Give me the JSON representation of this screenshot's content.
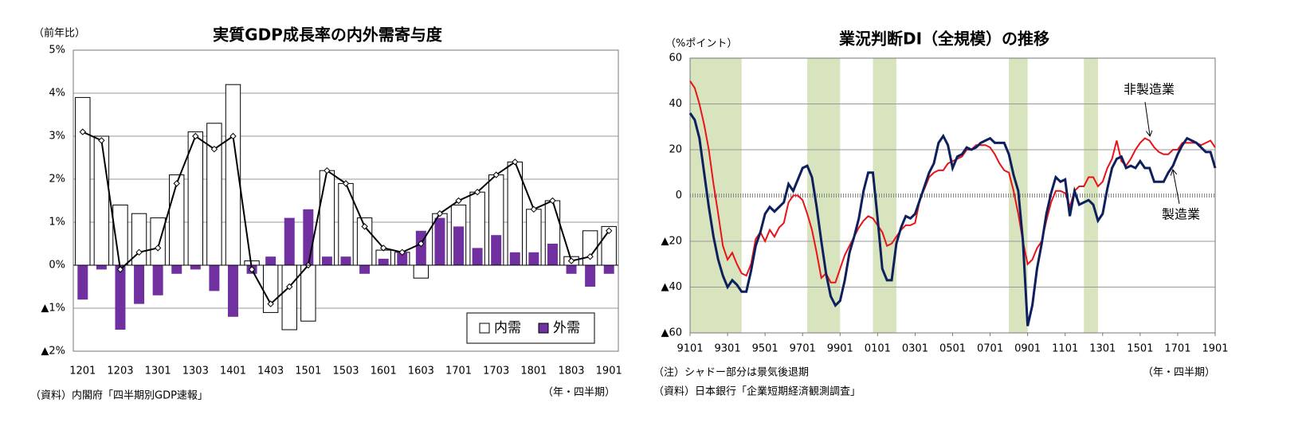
{
  "chart_data": [
    {
      "type": "bar",
      "title": "実質GDP成長率の内外需寄与度",
      "y_label": "（前年比）",
      "x_label": "（年・四半期）",
      "source": "（資料）内閣府「四半期別GDP速報」",
      "categories": [
        "1201",
        null,
        "1203",
        null,
        "1301",
        null,
        "1303",
        null,
        "1401",
        null,
        "1403",
        null,
        "1501",
        null,
        "1503",
        null,
        "1601",
        null,
        "1603",
        null,
        "1701",
        null,
        "1703",
        null,
        "1801",
        null,
        "1803",
        null,
        "1901"
      ],
      "series": [
        {
          "name": "内需",
          "color": "#ffffff",
          "values": [
            3.9,
            3.0,
            1.4,
            1.2,
            1.1,
            2.1,
            3.1,
            3.3,
            4.2,
            0.1,
            -1.1,
            -1.5,
            -1.3,
            2.2,
            1.9,
            1.1,
            0.35,
            0.3,
            -0.3,
            1.2,
            1.4,
            1.7,
            2.1,
            2.4,
            1.3,
            1.5,
            0.2,
            0.8,
            0.9
          ]
        },
        {
          "name": "外需",
          "color": "#7030a0",
          "values": [
            -0.8,
            -0.1,
            -1.5,
            -0.9,
            -0.7,
            -0.2,
            -0.1,
            -0.6,
            -1.2,
            -0.2,
            0.2,
            1.1,
            1.3,
            0.2,
            0.2,
            -0.2,
            0.15,
            0.3,
            0.8,
            1.1,
            0.9,
            0.4,
            0.7,
            0.3,
            0.3,
            0.5,
            -0.2,
            -0.5,
            -0.2
          ]
        },
        {
          "type": "line",
          "color": "#000000",
          "values": [
            3.1,
            2.9,
            -0.1,
            0.3,
            0.4,
            1.9,
            3.0,
            2.7,
            3.0,
            -0.1,
            -0.9,
            -0.5,
            0.0,
            2.2,
            1.9,
            0.9,
            0.4,
            0.3,
            0.5,
            1.2,
            1.5,
            1.7,
            2.1,
            2.4,
            1.3,
            1.5,
            0.1,
            0.2,
            0.8
          ]
        }
      ],
      "ylim": [
        -2,
        5
      ],
      "yticks": [
        {
          "value": -2,
          "label": "▲2%"
        },
        {
          "value": -1,
          "label": "▲1%"
        },
        {
          "value": 0,
          "label": "0%"
        },
        {
          "value": 1,
          "label": "1%"
        },
        {
          "value": 2,
          "label": "2%"
        },
        {
          "value": 3,
          "label": "3%"
        },
        {
          "value": 4,
          "label": "4%"
        },
        {
          "value": 5,
          "label": "5%"
        }
      ],
      "grid": true,
      "legend": "lower right"
    },
    {
      "type": "line",
      "title": "業況判断DI（全規模）の推移",
      "y_label": "（%ポイント）",
      "x_label": "（年・四半期）",
      "notes": [
        "（注）シャドー部分は景気後退期",
        "（資料）日本銀行「企業短期経済観測調査」"
      ],
      "annotations": [
        "非製造業",
        "製造業"
      ],
      "x": [
        1991,
        1991.25,
        1991.5,
        1991.75,
        1992,
        1992.25,
        1992.5,
        1992.75,
        1993,
        1993.25,
        1993.5,
        1993.75,
        1994,
        1994.25,
        1994.5,
        1994.75,
        1995,
        1995.25,
        1995.5,
        1995.75,
        1996,
        1996.25,
        1996.5,
        1996.75,
        1997,
        1997.25,
        1997.5,
        1997.75,
        1998,
        1998.25,
        1998.5,
        1998.75,
        1999,
        1999.25,
        1999.5,
        1999.75,
        2000,
        2000.25,
        2000.5,
        2000.75,
        2001,
        2001.25,
        2001.5,
        2001.75,
        2002,
        2002.25,
        2002.5,
        2002.75,
        2003,
        2003.25,
        2003.5,
        2003.75,
        2004,
        2004.25,
        2004.5,
        2004.75,
        2005,
        2005.25,
        2005.5,
        2005.75,
        2006,
        2006.25,
        2006.5,
        2006.75,
        2007,
        2007.25,
        2007.5,
        2007.75,
        2008,
        2008.25,
        2008.5,
        2008.75,
        2009,
        2009.25,
        2009.5,
        2009.75,
        2010,
        2010.25,
        2010.5,
        2010.75,
        2011,
        2011.25,
        2011.5,
        2011.75,
        2012,
        2012.25,
        2012.5,
        2012.75,
        2013,
        2013.25,
        2013.5,
        2013.75,
        2014,
        2014.25,
        2014.5,
        2014.75,
        2015,
        2015.25,
        2015.5,
        2015.75,
        2016,
        2016.25,
        2016.5,
        2016.75,
        2017,
        2017.25,
        2017.5,
        2017.75,
        2018,
        2018.25,
        2018.5,
        2018.75,
        2019
      ],
      "series": [
        {
          "name": "製造業",
          "color": "#0d1f5c",
          "values": [
            36,
            33,
            25,
            10,
            -5,
            -18,
            -28,
            -35,
            -40,
            -37,
            -39,
            -42,
            -42,
            -33,
            -22,
            -16,
            -8,
            -5,
            -7,
            -5,
            -3,
            5,
            2,
            7,
            12,
            13,
            8,
            -5,
            -20,
            -34,
            -44,
            -48,
            -46,
            -37,
            -25,
            -18,
            -10,
            2,
            10,
            10,
            -10,
            -32,
            -37,
            -37,
            -21,
            -14,
            -9,
            -10,
            -8,
            -2,
            4,
            10,
            14,
            23,
            26,
            22,
            12,
            17,
            18,
            21,
            20,
            21,
            23,
            24,
            25,
            23,
            23,
            23,
            18,
            9,
            2,
            -20,
            -57,
            -48,
            -32,
            -21,
            -8,
            1,
            8,
            6,
            7,
            -9,
            2,
            -4,
            -3,
            -2,
            -4,
            -11,
            -8,
            3,
            12,
            16,
            17,
            12,
            13,
            12,
            15,
            12,
            12,
            6,
            6,
            6,
            10,
            13,
            18,
            22,
            25,
            24,
            23,
            21,
            19,
            19,
            12
          ]
        },
        {
          "name": "非製造業",
          "color": "#e8141a",
          "values": [
            50,
            47,
            40,
            31,
            20,
            5,
            -8,
            -22,
            -28,
            -25,
            -30,
            -34,
            -35,
            -30,
            -19,
            -16,
            -20,
            -15,
            -18,
            -14,
            -12,
            -3,
            0,
            0,
            -2,
            -8,
            -15,
            -25,
            -36,
            -34,
            -38,
            -38,
            -32,
            -26,
            -22,
            -18,
            -14,
            -11,
            -9,
            -10,
            -13,
            -16,
            -22,
            -21,
            -18,
            -15,
            -13,
            -13,
            -12,
            -2,
            3,
            8,
            10,
            11,
            11,
            14,
            15,
            16,
            17,
            20,
            20,
            22,
            22,
            22,
            21,
            18,
            14,
            11,
            10,
            2,
            -8,
            -20,
            -30,
            -28,
            -23,
            -20,
            -11,
            -3,
            2,
            2,
            1,
            -5,
            2,
            4,
            4,
            8,
            8,
            4,
            6,
            12,
            16,
            24,
            15,
            13,
            16,
            20,
            23,
            25,
            24,
            21,
            19,
            18,
            18,
            20,
            20,
            23,
            23,
            23,
            23,
            22,
            23,
            24,
            21
          ]
        }
      ],
      "shaded": [
        [
          1991.0,
          1993.75
        ],
        [
          1997.25,
          1999.0
        ],
        [
          2000.75,
          2002.0
        ],
        [
          2008.0,
          2009.0
        ],
        [
          2012.0,
          2012.75
        ]
      ],
      "shade_color": "#d7e4bd",
      "xlim": [
        1991,
        2019
      ],
      "xticks": [
        {
          "value": 1991,
          "label": "9101"
        },
        {
          "value": 1993,
          "label": "9301"
        },
        {
          "value": 1995,
          "label": "9501"
        },
        {
          "value": 1997,
          "label": "9701"
        },
        {
          "value": 1999,
          "label": "9901"
        },
        {
          "value": 2001,
          "label": "0101"
        },
        {
          "value": 2003,
          "label": "0301"
        },
        {
          "value": 2005,
          "label": "0501"
        },
        {
          "value": 2007,
          "label": "0701"
        },
        {
          "value": 2009,
          "label": "0901"
        },
        {
          "value": 2011,
          "label": "1101"
        },
        {
          "value": 2013,
          "label": "1301"
        },
        {
          "value": 2015,
          "label": "1501"
        },
        {
          "value": 2017,
          "label": "1701"
        },
        {
          "value": 2019,
          "label": "1901"
        }
      ],
      "ylim": [
        -60,
        60
      ],
      "yticks": [
        {
          "value": -60,
          "label": "▲60"
        },
        {
          "value": -40,
          "label": "▲40"
        },
        {
          "value": -20,
          "label": "▲20"
        },
        0,
        20,
        40,
        60
      ],
      "grid": true
    }
  ]
}
